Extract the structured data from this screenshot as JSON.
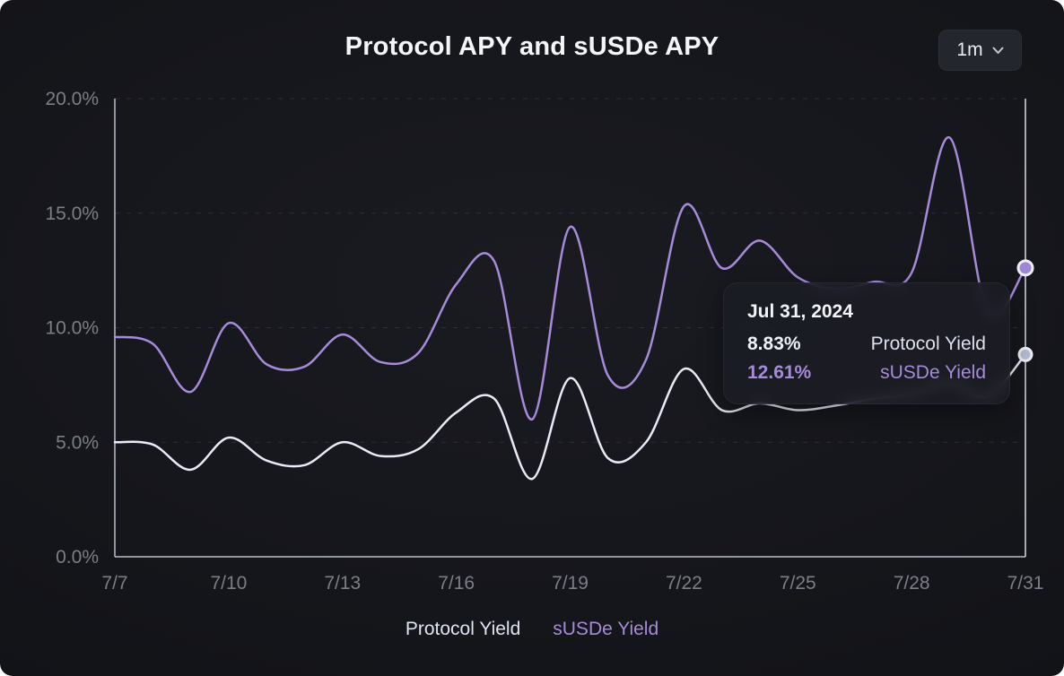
{
  "header": {
    "title": "Protocol APY and sUSDe APY",
    "range_selector": {
      "value": "1m"
    }
  },
  "chart_data": {
    "type": "line",
    "title": "Protocol APY and sUSDe APY",
    "x": [
      "7/7",
      "7/8",
      "7/9",
      "7/10",
      "7/11",
      "7/12",
      "7/13",
      "7/14",
      "7/15",
      "7/16",
      "7/17",
      "7/18",
      "7/19",
      "7/20",
      "7/21",
      "7/22",
      "7/23",
      "7/24",
      "7/25",
      "7/26",
      "7/27",
      "7/28",
      "7/29",
      "7/30",
      "7/31"
    ],
    "x_tick_labels": [
      "7/7",
      "7/10",
      "7/13",
      "7/16",
      "7/19",
      "7/22",
      "7/25",
      "7/28",
      "7/31"
    ],
    "y_ticks": [
      0,
      5,
      10,
      15,
      20
    ],
    "y_tick_labels": [
      "0.0%",
      "5.0%",
      "10.0%",
      "15.0%",
      "20.0%"
    ],
    "ylim": [
      0,
      20
    ],
    "grid": "horizontal-dashed",
    "legend_position": "bottom-center",
    "series": [
      {
        "name": "Protocol Yield",
        "color": "#e8ebf7",
        "marker_fill": "#b6bdd2",
        "marker_ring": "#eef0f8",
        "values": [
          5.0,
          4.9,
          3.8,
          5.2,
          4.2,
          4.0,
          5.0,
          4.4,
          4.7,
          6.3,
          6.9,
          3.4,
          7.8,
          4.3,
          5.0,
          8.2,
          6.4,
          6.7,
          6.4,
          6.6,
          6.9,
          7.1,
          7.6,
          7.0,
          8.83
        ]
      },
      {
        "name": "sUSDe Yield",
        "color": "#a78bda",
        "marker_fill": "#9d87d3",
        "marker_ring": "#f0edfa",
        "values": [
          9.6,
          9.3,
          7.2,
          10.2,
          8.4,
          8.3,
          9.7,
          8.5,
          8.9,
          11.9,
          12.9,
          6.0,
          14.4,
          7.9,
          8.6,
          15.3,
          12.6,
          13.8,
          12.2,
          11.7,
          12.0,
          12.4,
          18.3,
          10.7,
          12.61
        ]
      }
    ]
  },
  "tooltip": {
    "date": "Jul 31, 2024",
    "rows": [
      {
        "value": "8.83%",
        "label": "Protocol Yield",
        "value_color": "#eef1f8",
        "label_color": "#dce1ee"
      },
      {
        "value": "12.61%",
        "label": "sUSDe Yield",
        "value_color": "#a78bda",
        "label_color": "#a78bda"
      }
    ]
  },
  "legend": {
    "items": [
      {
        "label": "Protocol Yield",
        "color": "#dfe4f2"
      },
      {
        "label": "sUSDe Yield",
        "color": "#a78bda"
      }
    ]
  },
  "colors": {
    "axis": "#b9bec9",
    "crosshair": "#d8dbe3",
    "grid": "rgba(255,255,255,0.10)",
    "tick_label": "#7b7e88"
  }
}
